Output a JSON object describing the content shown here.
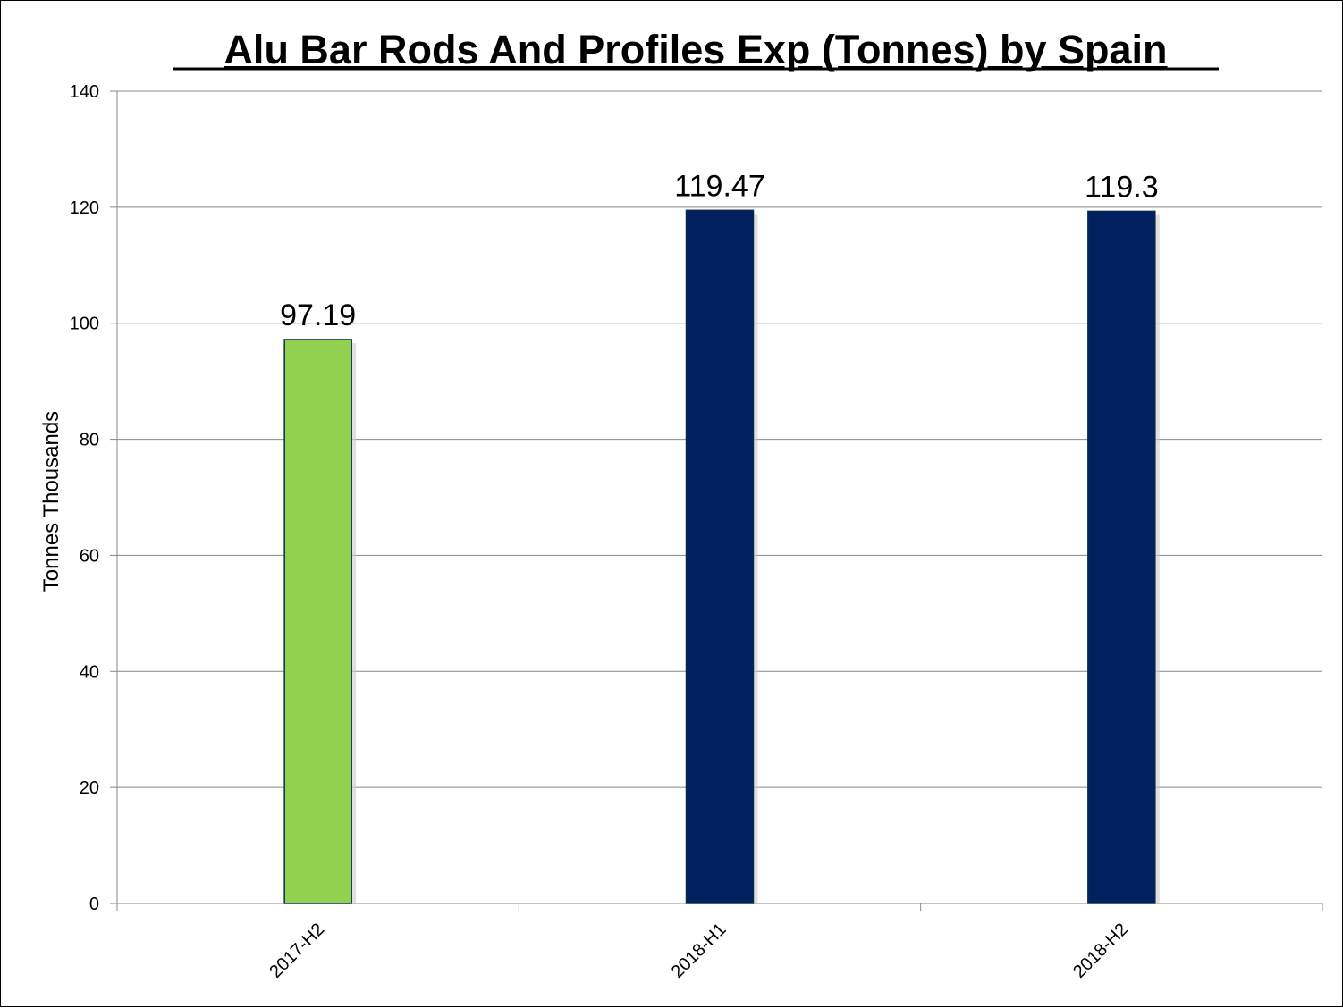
{
  "chart_data": {
    "type": "bar",
    "title": "Alu Bar Rods And Profiles Exp (Tonnes) by Spain",
    "xlabel": "",
    "ylabel": "Tonnes Thousands",
    "categories": [
      "2017-H2",
      "2018-H1",
      "2018-H2"
    ],
    "values": [
      97.19,
      119.47,
      119.3
    ],
    "data_labels": [
      "97.19",
      "119.47",
      "119.3"
    ],
    "bar_colors": [
      "#92d050",
      "#002060",
      "#002060"
    ],
    "ylim": [
      0,
      140
    ],
    "yticks": [
      0,
      20,
      40,
      60,
      80,
      100,
      120,
      140
    ],
    "grid": true,
    "legend": "none"
  }
}
